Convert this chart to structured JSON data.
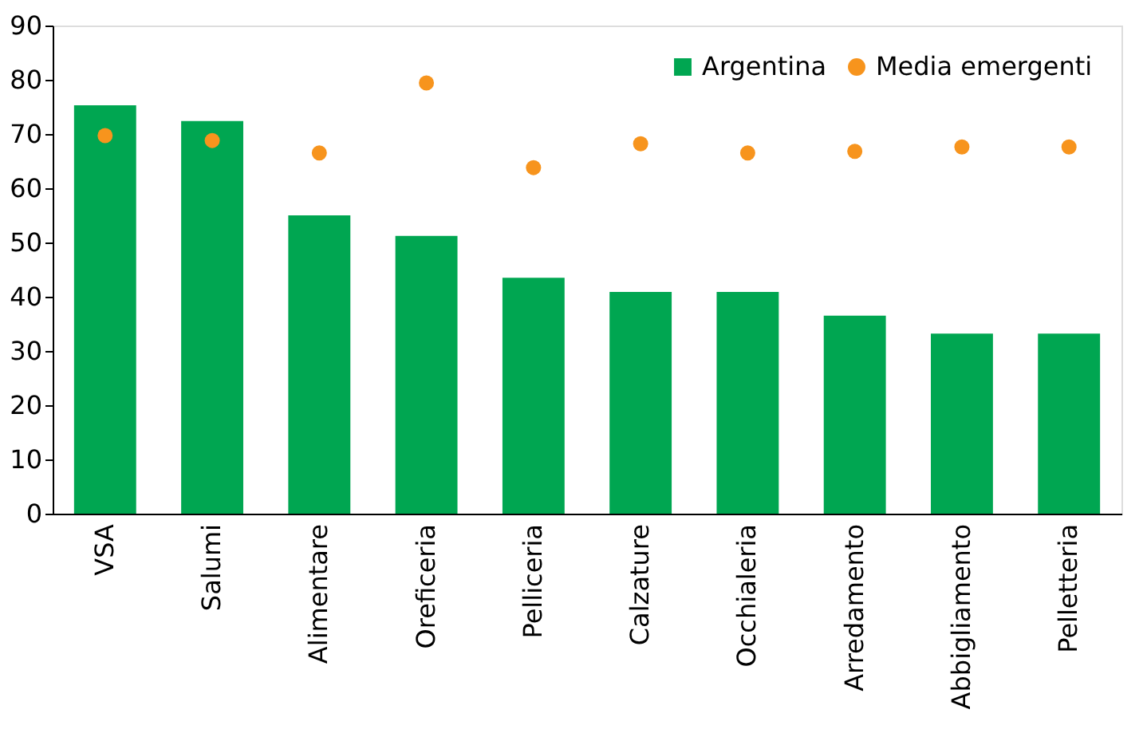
{
  "chart_data": {
    "type": "bar",
    "categories": [
      "VSA",
      "Salumi",
      "Alimentare",
      "Oreficeria",
      "Pelliceria",
      "Calzature",
      "Occhialeria",
      "Arredamento",
      "Abbigliamento",
      "Pelletteria"
    ],
    "series": [
      {
        "name": "Argentina",
        "type": "bar",
        "color": "#00a651",
        "values": [
          75.3,
          72.4,
          55,
          51.2,
          43.5,
          40.9,
          40.9,
          36.5,
          33.2,
          33.2
        ]
      },
      {
        "name": "Media emergenti",
        "type": "scatter",
        "color": "#f7941d",
        "values": [
          69.7,
          68.8,
          66.5,
          79.4,
          63.8,
          68.2,
          66.5,
          66.8,
          67.6,
          67.6
        ]
      }
    ],
    "ylim": [
      0,
      90
    ],
    "yticks": [
      0,
      10,
      20,
      30,
      40,
      50,
      60,
      70,
      80,
      90
    ],
    "grid": false,
    "legend": "top right",
    "marker": "circle"
  }
}
